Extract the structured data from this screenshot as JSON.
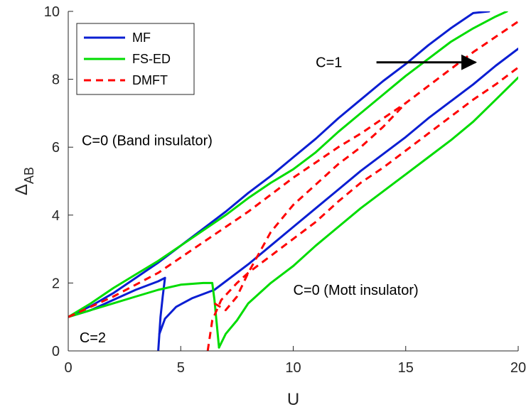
{
  "chart_data": {
    "type": "line",
    "title": "",
    "xlabel": "U",
    "ylabel_main": "Δ",
    "ylabel_sub": "AB",
    "xlim": [
      0,
      20
    ],
    "ylim": [
      0,
      10
    ],
    "xticks": [
      0,
      5,
      10,
      15,
      20
    ],
    "yticks": [
      0,
      2,
      4,
      6,
      8,
      10
    ],
    "grid": false,
    "legend_position": "top-left",
    "series": [
      {
        "name": "MF",
        "color": "#0a1ed2",
        "dash": "solid",
        "legend": true,
        "segments": [
          [
            [
              0,
              1.0
            ],
            [
              1,
              1.2
            ],
            [
              2,
              1.5
            ],
            [
              3,
              1.8
            ],
            [
              4,
              2.05
            ],
            [
              4.3,
              2.15
            ]
          ],
          [
            [
              4.3,
              2.15
            ],
            [
              4.2,
              1.6
            ],
            [
              4.1,
              1.0
            ],
            [
              4.05,
              0.5
            ],
            [
              4.0,
              0.0
            ]
          ],
          [
            [
              0,
              1.0
            ],
            [
              1,
              1.32
            ],
            [
              2,
              1.7
            ],
            [
              3,
              2.15
            ],
            [
              4,
              2.6
            ],
            [
              4.3,
              2.75
            ],
            [
              5,
              3.1
            ],
            [
              6,
              3.6
            ],
            [
              7,
              4.1
            ],
            [
              8,
              4.65
            ],
            [
              9,
              5.15
            ],
            [
              10,
              5.7
            ],
            [
              11,
              6.25
            ],
            [
              12,
              6.85
            ],
            [
              13,
              7.4
            ],
            [
              14,
              7.95
            ],
            [
              15,
              8.45
            ],
            [
              16,
              9.0
            ],
            [
              17,
              9.5
            ],
            [
              18,
              9.95
            ],
            [
              18.7,
              10.0
            ]
          ],
          [
            [
              4.05,
              0.5
            ],
            [
              4.3,
              0.95
            ],
            [
              4.8,
              1.3
            ],
            [
              5.5,
              1.55
            ],
            [
              6.5,
              1.8
            ],
            [
              8,
              2.55
            ],
            [
              9,
              3.1
            ],
            [
              10,
              3.65
            ],
            [
              11,
              4.2
            ],
            [
              12,
              4.75
            ],
            [
              13,
              5.3
            ],
            [
              14,
              5.8
            ],
            [
              15,
              6.3
            ],
            [
              16,
              6.85
            ],
            [
              17,
              7.35
            ],
            [
              18,
              7.85
            ],
            [
              19,
              8.4
            ],
            [
              20,
              8.9
            ]
          ]
        ]
      },
      {
        "name": "FS-ED",
        "color": "#00dc00",
        "dash": "solid",
        "legend": true,
        "segments": [
          [
            [
              0,
              1.0
            ],
            [
              1,
              1.4
            ],
            [
              2,
              1.85
            ],
            [
              3,
              2.25
            ],
            [
              4,
              2.65
            ],
            [
              5,
              3.1
            ],
            [
              6,
              3.55
            ],
            [
              7,
              4.0
            ],
            [
              8,
              4.5
            ],
            [
              9,
              4.95
            ],
            [
              10,
              5.35
            ],
            [
              11,
              5.85
            ],
            [
              12,
              6.45
            ],
            [
              13,
              7.0
            ],
            [
              14,
              7.55
            ],
            [
              15,
              8.1
            ],
            [
              16,
              8.6
            ],
            [
              17,
              9.1
            ],
            [
              18,
              9.5
            ],
            [
              19,
              9.85
            ],
            [
              19.5,
              10.0
            ]
          ],
          [
            [
              0,
              1.0
            ],
            [
              1,
              1.2
            ],
            [
              2,
              1.4
            ],
            [
              3,
              1.6
            ],
            [
              4,
              1.8
            ],
            [
              5,
              1.95
            ],
            [
              6,
              2.0
            ],
            [
              6.4,
              2.0
            ],
            [
              6.5,
              1.5
            ],
            [
              6.6,
              0.8
            ],
            [
              6.7,
              0.1
            ]
          ],
          [
            [
              6.7,
              0.1
            ],
            [
              7,
              0.5
            ],
            [
              7.5,
              0.9
            ],
            [
              8,
              1.4
            ],
            [
              9,
              2.0
            ],
            [
              10,
              2.5
            ],
            [
              11,
              3.1
            ],
            [
              12,
              3.65
            ],
            [
              13,
              4.2
            ],
            [
              14,
              4.7
            ],
            [
              15,
              5.2
            ],
            [
              16,
              5.7
            ],
            [
              17,
              6.2
            ],
            [
              18,
              6.75
            ],
            [
              19,
              7.4
            ],
            [
              20,
              8.05
            ]
          ]
        ]
      },
      {
        "name": "DMFT",
        "color": "#ff0000",
        "dash": "dashed",
        "legend": true,
        "segments": [
          [
            [
              0,
              1.0
            ],
            [
              1,
              1.3
            ],
            [
              2,
              1.6
            ],
            [
              3,
              1.95
            ],
            [
              4,
              2.3
            ],
            [
              5,
              2.75
            ],
            [
              6,
              3.2
            ],
            [
              7,
              3.65
            ],
            [
              8,
              4.1
            ],
            [
              9,
              4.6
            ],
            [
              10,
              5.1
            ],
            [
              11,
              5.55
            ],
            [
              12,
              6.0
            ],
            [
              13,
              6.4
            ],
            [
              14,
              6.85
            ],
            [
              15,
              7.3
            ],
            [
              16,
              7.8
            ],
            [
              17,
              8.3
            ],
            [
              18,
              8.8
            ],
            [
              19,
              9.25
            ],
            [
              20,
              9.7
            ]
          ],
          [
            [
              6.2,
              0.0
            ],
            [
              6.4,
              0.9
            ],
            [
              6.8,
              1.5
            ],
            [
              7.5,
              2.0
            ],
            [
              8,
              2.3
            ],
            [
              9,
              2.8
            ],
            [
              10,
              3.3
            ],
            [
              11,
              3.8
            ],
            [
              12,
              4.4
            ],
            [
              13,
              4.95
            ],
            [
              14,
              5.4
            ],
            [
              15,
              5.9
            ],
            [
              16,
              6.4
            ],
            [
              17,
              6.9
            ],
            [
              18,
              7.4
            ],
            [
              19,
              7.85
            ],
            [
              20,
              8.35
            ]
          ],
          [
            [
              6.5,
              1.4
            ],
            [
              7,
              1.2
            ],
            [
              7.5,
              1.6
            ],
            [
              8,
              2.3
            ],
            [
              9,
              3.5
            ],
            [
              10,
              4.3
            ],
            [
              11,
              4.9
            ],
            [
              12,
              5.5
            ],
            [
              13,
              6.0
            ],
            [
              14,
              6.6
            ],
            [
              15,
              7.3
            ]
          ]
        ]
      }
    ],
    "annotations": [
      {
        "text": "C=1",
        "x": 11.0,
        "y": 8.5
      },
      {
        "text": "C=0 (Band insulator)",
        "x": 0.6,
        "y": 6.2
      },
      {
        "text": "C=0 (Mott insulator)",
        "x": 10.0,
        "y": 1.8
      },
      {
        "text": "C=2",
        "x": 0.5,
        "y": 0.4
      }
    ],
    "arrow": {
      "from": [
        13.7,
        8.5
      ],
      "to": [
        18.1,
        8.5
      ],
      "color": "#000000"
    }
  }
}
